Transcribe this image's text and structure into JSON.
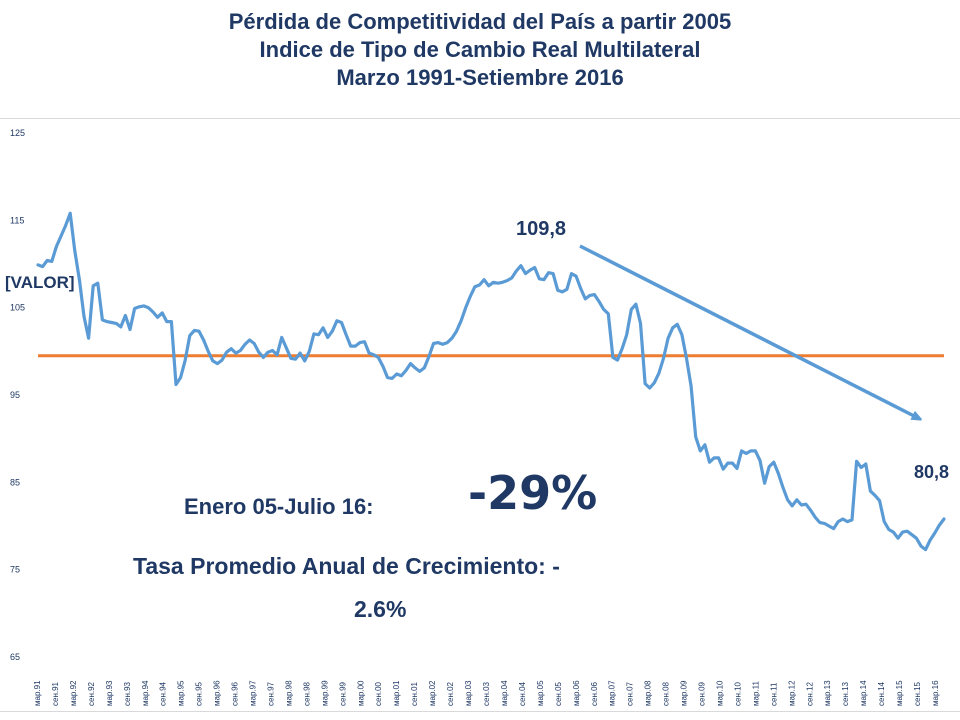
{
  "title_lines": [
    "Pérdida de Competitividad del País a partir 2005",
    "Indice de Tipo de Cambio Real Multilateral",
    "Marzo 1991-Setiembre 2016"
  ],
  "annotations": {
    "peak_value": "109,8",
    "end_value": "80,8",
    "start_value": "[VALOR]",
    "period_label": "Enero 05-Julio 16:",
    "change_pct": "-29%",
    "growth_line1": "Tasa Promedio Anual de Crecimiento: -",
    "growth_line2": "2.6%"
  },
  "colors": {
    "title": "#1f3864",
    "series": "#5b9bd5",
    "reference": "#ed7d31",
    "arrow": "#5b9bd5",
    "axis_text": "#1f3864"
  },
  "chart_data": {
    "type": "line",
    "title": "Pérdida de Competitividad del País a partir 2005 / Indice de Tipo de Cambio Real Multilateral / Marzo 1991-Setiembre 2016",
    "xlabel": "",
    "ylabel": "",
    "ylim": [
      65,
      125
    ],
    "yticks": [
      65,
      75,
      85,
      95,
      105,
      115,
      125
    ],
    "grid": false,
    "legend": "none",
    "x_tick_labels": [
      "мар.91",
      "сен.91",
      "мар.92",
      "сен.92",
      "мар.93",
      "сен.93",
      "мар.94",
      "сен.94",
      "мар.95",
      "сен.95",
      "мар.96",
      "сен.96",
      "мар.97",
      "сен.97",
      "мар.98",
      "сен.98",
      "мар.99",
      "сен.99",
      "мар.00",
      "сен.00",
      "мар.01",
      "сен.01",
      "мар.02",
      "сен.02",
      "мар.03",
      "сен.03",
      "мар.04",
      "сен.04",
      "мар.05",
      "сен.05",
      "мар.06",
      "сен.06",
      "мар.07",
      "сен.07",
      "мар.08",
      "сен.08",
      "мар.09",
      "сен.09",
      "мар.10",
      "сен.10",
      "мар.11",
      "сен.11",
      "мар.12",
      "сен.12",
      "мар.13",
      "сен.13",
      "мар.14",
      "сен.14",
      "мар.15",
      "сен.15",
      "мар.16"
    ],
    "reference_line": 99.5,
    "series": [
      {
        "values": [
          109.9,
          109.7,
          110.4,
          110.3,
          112.0,
          113.2,
          114.4,
          115.8,
          111.5,
          108.2,
          104.0,
          101.5,
          107.5,
          107.8,
          103.6,
          103.4,
          103.3,
          103.2,
          102.8,
          104.1,
          102.5,
          104.9,
          105.1,
          105.2,
          105.0,
          104.5,
          103.9,
          104.4,
          103.4,
          103.4,
          96.2,
          97.0,
          99.0,
          101.8,
          102.4,
          102.3,
          101.3,
          100.0,
          98.9,
          98.6,
          99.0,
          99.9,
          100.3,
          99.8,
          100.1,
          100.8,
          101.3,
          100.9,
          99.9,
          99.3,
          99.9,
          100.1,
          99.6,
          101.6,
          100.4,
          99.2,
          99.1,
          99.8,
          98.9,
          100.0,
          102.0,
          101.9,
          102.7,
          101.6,
          102.3,
          103.5,
          103.3,
          101.9,
          100.6,
          100.6,
          101.0,
          101.1,
          99.8,
          99.6,
          99.3,
          98.3,
          97.0,
          96.9,
          97.4,
          97.2,
          97.8,
          98.6,
          98.1,
          97.7,
          98.1,
          99.4,
          100.9,
          101.0,
          100.8,
          101.0,
          101.5,
          102.3,
          103.5,
          105.0,
          106.3,
          107.4,
          107.6,
          108.2,
          107.5,
          107.9,
          107.8,
          107.9,
          108.1,
          108.4,
          109.2,
          109.8,
          108.9,
          109.3,
          109.6,
          108.3,
          108.2,
          109.0,
          108.9,
          107.0,
          106.8,
          107.1,
          108.9,
          108.6,
          107.2,
          106.0,
          106.4,
          106.5,
          105.7,
          104.8,
          104.3,
          99.3,
          99.0,
          100.3,
          101.9,
          104.8,
          105.4,
          103.2,
          96.3,
          95.8,
          96.4,
          97.5,
          99.2,
          101.5,
          102.7,
          103.1,
          101.9,
          99.2,
          96.0,
          90.2,
          88.6,
          89.3,
          87.3,
          87.8,
          87.8,
          86.5,
          87.2,
          87.2,
          86.6,
          88.6,
          88.3,
          88.6,
          88.6,
          87.5,
          84.9,
          86.8,
          87.3,
          86.0,
          84.4,
          83.0,
          82.3,
          83.0,
          82.4,
          82.5,
          81.8,
          81.0,
          80.4,
          80.3,
          80.0,
          79.7,
          80.5,
          80.8,
          80.5,
          80.7,
          87.4,
          86.7,
          87.1,
          84.0,
          83.5,
          82.9,
          80.5,
          79.6,
          79.3,
          78.6,
          79.3,
          79.4,
          79.0,
          78.6,
          77.7,
          77.3,
          78.4,
          79.2,
          80.1,
          80.8
        ]
      }
    ]
  }
}
